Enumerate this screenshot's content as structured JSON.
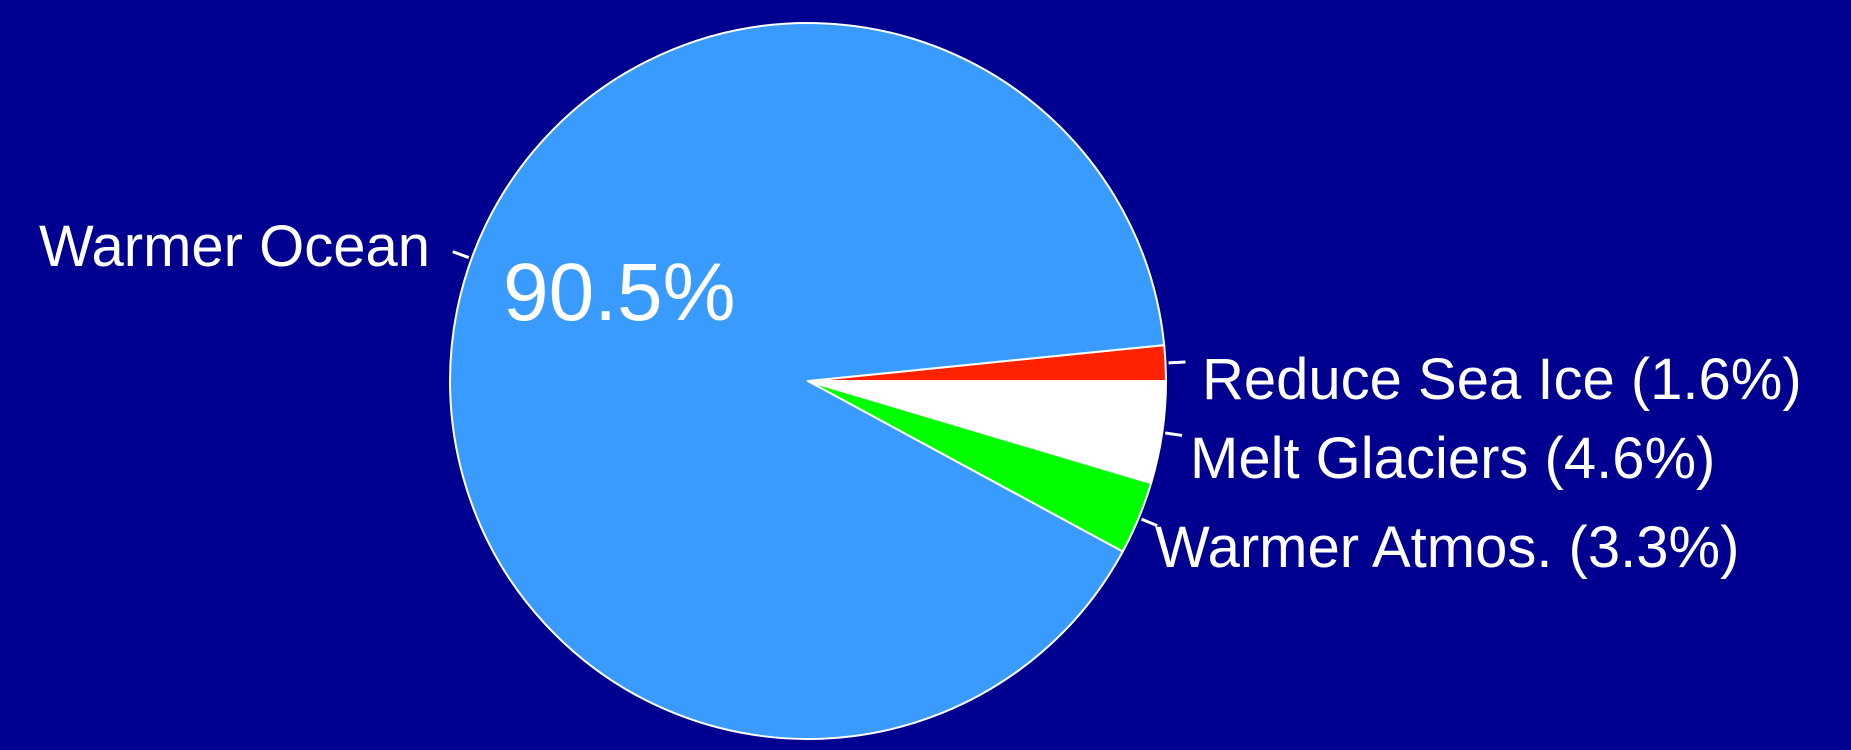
{
  "chart_data": {
    "type": "pie",
    "start_angle_deg": 0,
    "direction": "counterclockwise",
    "background_color": "#000090",
    "outline_color": "#ffffff",
    "slices": [
      {
        "label": "Reduce Sea Ice",
        "value": 1.6,
        "display": "Reduce Sea Ice (1.6%)",
        "color": "#ff2200"
      },
      {
        "label": "Warmer Ocean",
        "value": 90.5,
        "display": "Warmer Ocean",
        "inside_text": "90.5%",
        "color": "#3a9bff"
      },
      {
        "label": "Warmer Atmos.",
        "value": 3.3,
        "display": "Warmer Atmos. (3.3%)",
        "color": "#00ff00"
      },
      {
        "label": "Melt Glaciers",
        "value": 4.6,
        "display": "Melt Glaciers (4.6%)",
        "color": "#ffffff"
      }
    ]
  }
}
